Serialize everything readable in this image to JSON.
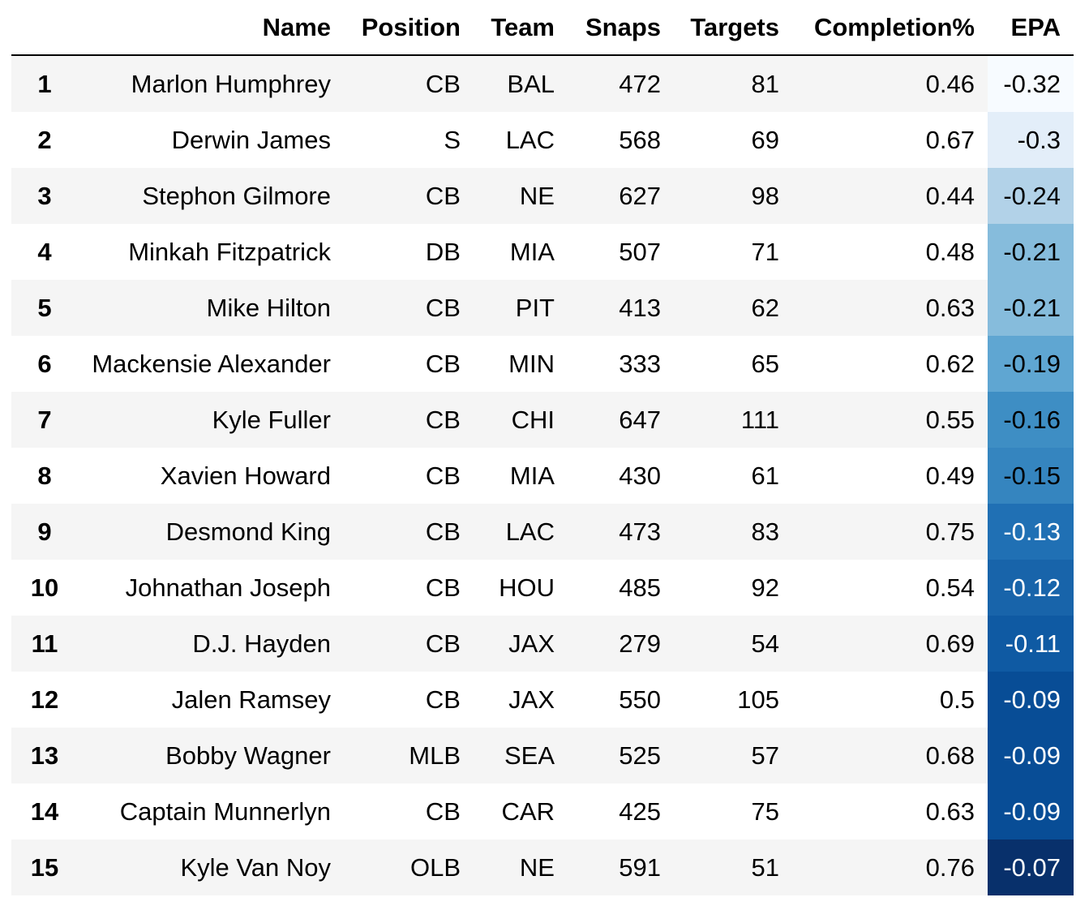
{
  "table": {
    "columns": [
      "",
      "Name",
      "Position",
      "Team",
      "Snaps",
      "Targets",
      "Completion%",
      "EPA"
    ],
    "rows": [
      {
        "index": "1",
        "name": "Marlon Humphrey",
        "position": "CB",
        "team": "BAL",
        "snaps": "472",
        "targets": "81",
        "completion": "0.46",
        "epa": "-0.32"
      },
      {
        "index": "2",
        "name": "Derwin James",
        "position": "S",
        "team": "LAC",
        "snaps": "568",
        "targets": "69",
        "completion": "0.67",
        "epa": "-0.3"
      },
      {
        "index": "3",
        "name": "Stephon Gilmore",
        "position": "CB",
        "team": "NE",
        "snaps": "627",
        "targets": "98",
        "completion": "0.44",
        "epa": "-0.24"
      },
      {
        "index": "4",
        "name": "Minkah Fitzpatrick",
        "position": "DB",
        "team": "MIA",
        "snaps": "507",
        "targets": "71",
        "completion": "0.48",
        "epa": "-0.21"
      },
      {
        "index": "5",
        "name": "Mike Hilton",
        "position": "CB",
        "team": "PIT",
        "snaps": "413",
        "targets": "62",
        "completion": "0.63",
        "epa": "-0.21"
      },
      {
        "index": "6",
        "name": "Mackensie Alexander",
        "position": "CB",
        "team": "MIN",
        "snaps": "333",
        "targets": "65",
        "completion": "0.62",
        "epa": "-0.19"
      },
      {
        "index": "7",
        "name": "Kyle Fuller",
        "position": "CB",
        "team": "CHI",
        "snaps": "647",
        "targets": "111",
        "completion": "0.55",
        "epa": "-0.16"
      },
      {
        "index": "8",
        "name": "Xavien Howard",
        "position": "CB",
        "team": "MIA",
        "snaps": "430",
        "targets": "61",
        "completion": "0.49",
        "epa": "-0.15"
      },
      {
        "index": "9",
        "name": "Desmond King",
        "position": "CB",
        "team": "LAC",
        "snaps": "473",
        "targets": "83",
        "completion": "0.75",
        "epa": "-0.13"
      },
      {
        "index": "10",
        "name": "Johnathan Joseph",
        "position": "CB",
        "team": "HOU",
        "snaps": "485",
        "targets": "92",
        "completion": "0.54",
        "epa": "-0.12"
      },
      {
        "index": "11",
        "name": "D.J. Hayden",
        "position": "CB",
        "team": "JAX",
        "snaps": "279",
        "targets": "54",
        "completion": "0.69",
        "epa": "-0.11"
      },
      {
        "index": "12",
        "name": "Jalen Ramsey",
        "position": "CB",
        "team": "JAX",
        "snaps": "550",
        "targets": "105",
        "completion": "0.5",
        "epa": "-0.09"
      },
      {
        "index": "13",
        "name": "Bobby Wagner",
        "position": "MLB",
        "team": "SEA",
        "snaps": "525",
        "targets": "57",
        "completion": "0.68",
        "epa": "-0.09"
      },
      {
        "index": "14",
        "name": "Captain Munnerlyn",
        "position": "CB",
        "team": "CAR",
        "snaps": "425",
        "targets": "75",
        "completion": "0.63",
        "epa": "-0.09"
      },
      {
        "index": "15",
        "name": "Kyle Van Noy",
        "position": "OLB",
        "team": "NE",
        "snaps": "591",
        "targets": "51",
        "completion": "0.76",
        "epa": "-0.07"
      }
    ]
  },
  "epa_colors": [
    "#f7fbff",
    "#e3eef9",
    "#b2d2e8",
    "#86bcdc",
    "#86bcdc",
    "#5fa6d2",
    "#3e8ec4",
    "#3585bf",
    "#2070b4",
    "#1864aa",
    "#0f5aa3",
    "#084d96",
    "#084d96",
    "#084d96",
    "#08306b"
  ],
  "epa_text_colors": [
    "#000000",
    "#000000",
    "#000000",
    "#000000",
    "#000000",
    "#000000",
    "#000000",
    "#000000",
    "#ffffff",
    "#ffffff",
    "#ffffff",
    "#ffffff",
    "#ffffff",
    "#ffffff",
    "#ffffff"
  ]
}
